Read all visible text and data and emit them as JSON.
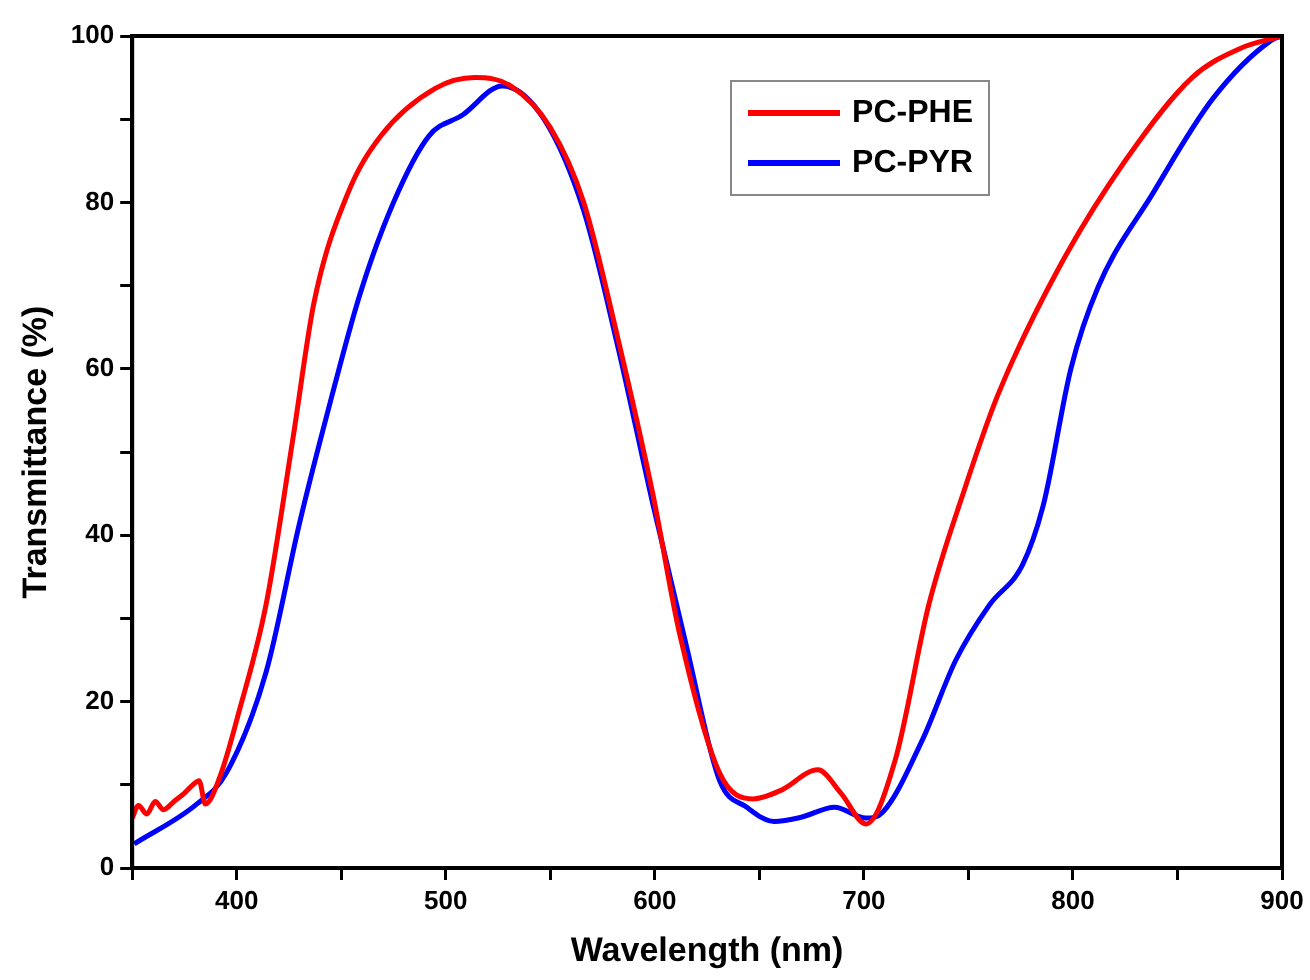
{
  "chart_data": {
    "type": "line",
    "xlabel": "Wavelength (nm)",
    "ylabel": "Transmittance (%)",
    "xlim": [
      350,
      900
    ],
    "ylim": [
      0,
      100
    ],
    "xticks": [
      {
        "value": 350,
        "label": null
      },
      400,
      {
        "value": 450,
        "label": null
      },
      500,
      {
        "value": 550,
        "label": null
      },
      600,
      {
        "value": 650,
        "label": null
      },
      700,
      {
        "value": 750,
        "label": null
      },
      800,
      {
        "value": 850,
        "label": null
      },
      900
    ],
    "yticks": [
      0,
      {
        "value": 10,
        "label": null
      },
      20,
      {
        "value": 30,
        "label": null
      },
      40,
      {
        "value": 50,
        "label": null
      },
      60,
      {
        "value": 70,
        "label": null
      },
      80,
      {
        "value": 90,
        "label": null
      },
      100
    ],
    "grid": false,
    "legend": "top",
    "marker": "none",
    "line_style": "solid",
    "series": [
      {
        "name": "PC-PHE",
        "color": "#ff0000",
        "x": [
          350,
          353,
          357,
          361,
          365,
          370,
          375,
          379,
          382,
          385,
          392,
          401,
          414,
          427,
          437,
          453,
          469,
          495,
          514,
          531,
          550,
          566,
          582,
          599,
          612,
          631,
          647,
          660,
          678,
          689,
          701,
          715,
          731,
          748,
          764,
          793,
          825,
          857,
          880,
          900
        ],
        "values": [
          6,
          7.5,
          6.5,
          8,
          7,
          8,
          9,
          10,
          10.5,
          7.7,
          11,
          18.7,
          31.6,
          51.8,
          68,
          81,
          88,
          93.7,
          95,
          94,
          89,
          80,
          64,
          45,
          28,
          11.4,
          8.3,
          9.3,
          11.8,
          9,
          5.3,
          13,
          31.6,
          45.4,
          56.8,
          72,
          85,
          95,
          98.5,
          100
        ]
      },
      {
        "name": "PC-PYR",
        "color": "#0000ff",
        "x": [
          351,
          381,
          395,
          414,
          430,
          443,
          459,
          475,
          492,
          508,
          527,
          547,
          566,
          582,
          599,
          615,
          631,
          644,
          657,
          670,
          686,
          701,
          709,
          728,
          744,
          760,
          776,
          786,
          799,
          812,
          838,
          867,
          895,
          900
        ],
        "values": [
          2.9,
          7.7,
          11.4,
          23.5,
          41.4,
          54.3,
          69,
          80,
          88,
          90.5,
          94,
          90,
          79,
          63,
          43.8,
          26.8,
          10.5,
          7.3,
          5.6,
          6.1,
          7.3,
          6,
          6.7,
          15.4,
          25,
          31.6,
          36.5,
          43.8,
          60,
          69.8,
          81,
          92.5,
          99.5,
          100
        ]
      }
    ]
  }
}
